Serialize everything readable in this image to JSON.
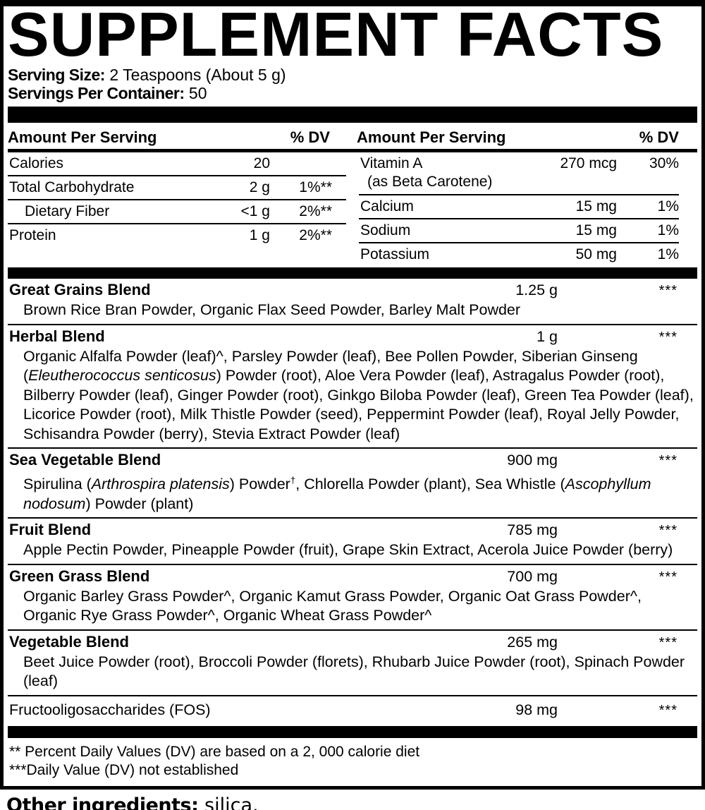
{
  "title": "SUPPLEMENT FACTS",
  "serving": {
    "size_label": "Serving Size:",
    "size_value": "2 Teaspoons (About 5 g)",
    "per_container_label": "Servings Per Container:",
    "per_container_value": "50"
  },
  "nutrient_columns": [
    {
      "amount_header": "Amount Per Serving",
      "dv_header": "% DV",
      "rows": [
        {
          "label": "Calories",
          "amount": "20",
          "dv": ""
        },
        {
          "label": "Total Carbohydrate",
          "amount": "2 g",
          "dv": "1%**"
        },
        {
          "label": "Dietary Fiber",
          "indent": true,
          "amount": "<1 g",
          "dv": "2%**"
        },
        {
          "label": "Protein",
          "amount": "1 g",
          "dv": "2%**"
        }
      ]
    },
    {
      "amount_header": "Amount Per Serving",
      "dv_header": "% DV",
      "rows": [
        {
          "label": "Vitamin A",
          "sublabel": "(as Beta Carotene)",
          "amount": "270 mcg",
          "dv": "30%"
        },
        {
          "label": "Calcium",
          "amount": "15 mg",
          "dv": "1%"
        },
        {
          "label": "Sodium",
          "amount": "15 mg",
          "dv": "1%"
        },
        {
          "label": "Potassium",
          "amount": "50 mg",
          "dv": "1%"
        }
      ]
    }
  ],
  "blends": [
    {
      "name": "Great Grains Blend",
      "bold": true,
      "amount": "1.25 g",
      "dv": "***",
      "ingredients": [
        {
          "t": "Brown Rice Bran Powder, Organic Flax Seed Powder, Barley Malt Powder"
        }
      ]
    },
    {
      "name": "Herbal Blend",
      "bold": true,
      "amount": "1 g",
      "dv": "***",
      "ingredients": [
        {
          "t": "Organic Alfalfa Powder (leaf)^, Parsley Powder (leaf), Bee Pollen Powder, Siberian Ginseng ("
        },
        {
          "t": "Eleutherococcus senticosus",
          "i": true
        },
        {
          "t": ") Powder (root), Aloe Vera Powder (leaf), Astragalus Powder (root), Bilberry Powder (leaf), Ginger Powder (root), Ginkgo Biloba Powder (leaf), Green Tea Powder (leaf), Licorice Powder (root), Milk Thistle Powder (seed), Peppermint Powder (leaf), Royal Jelly Powder, Schisandra Powder (berry), Stevia Extract Powder (leaf)"
        }
      ]
    },
    {
      "name": "Sea Vegetable Blend",
      "bold": true,
      "amount": "900 mg",
      "dv": "***",
      "ingredients": [
        {
          "t": "Spirulina ("
        },
        {
          "t": "Arthrospira platensis",
          "i": true
        },
        {
          "t": ") Powder"
        },
        {
          "t": "†",
          "sup": true
        },
        {
          "t": ", Chlorella Powder (plant), Sea Whistle ("
        },
        {
          "t": "Ascophyllum nodosum",
          "i": true
        },
        {
          "t": ") Powder (plant)"
        }
      ]
    },
    {
      "name": "Fruit Blend",
      "bold": true,
      "amount": "785 mg",
      "dv": "***",
      "ingredients": [
        {
          "t": "Apple Pectin Powder, Pineapple Powder (fruit), Grape Skin Extract, Acerola Juice Powder (berry)"
        }
      ]
    },
    {
      "name": "Green Grass Blend",
      "bold": true,
      "amount": "700 mg",
      "dv": "***",
      "ingredients": [
        {
          "t": "Organic Barley Grass Powder^, Organic Kamut Grass Powder, Organic Oat Grass Powder^, Organic Rye Grass Powder^, Organic Wheat Grass Powder^"
        }
      ]
    },
    {
      "name": "Vegetable Blend",
      "bold": true,
      "amount": "265 mg",
      "dv": "***",
      "ingredients": [
        {
          "t": "Beet Juice Powder (root), Broccoli Powder (florets), Rhubarb Juice Powder (root), Spinach Powder (leaf)"
        }
      ]
    },
    {
      "name": "Fructooligosaccharides (FOS)",
      "bold": false,
      "amount": "98 mg",
      "dv": "***",
      "ingredients": []
    }
  ],
  "footnotes": [
    "** Percent Daily Values (DV) are based on a 2, 000 calorie diet",
    "***Daily Value (DV) not established"
  ],
  "other_ingredients": {
    "label": "Other ingredients:",
    "value": "silica."
  },
  "colors": {
    "ink": "#000000",
    "paper": "#ffffff"
  }
}
